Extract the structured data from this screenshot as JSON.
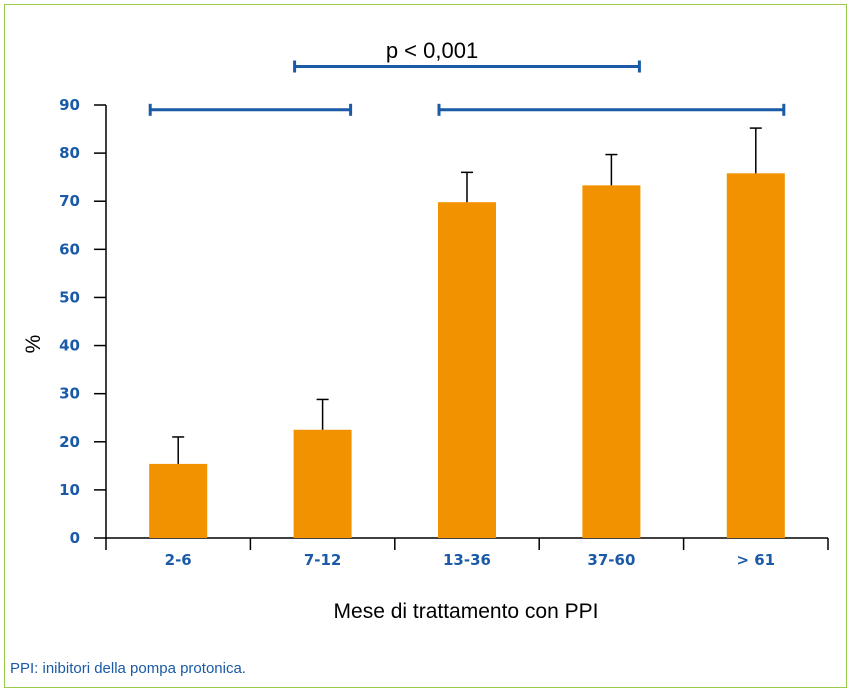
{
  "chart_data": {
    "type": "bar",
    "categories": [
      "2-6",
      "7-12",
      "13-36",
      "37-60",
      "> 61"
    ],
    "series": [
      {
        "values": [
          15.4,
          22.5,
          69.8,
          73.3,
          75.8
        ],
        "error_upper": [
          21.0,
          28.8,
          76.0,
          79.7,
          85.2
        ]
      }
    ],
    "xlabel": "Mese di trattamento con PPI",
    "ylabel": "%",
    "ylim": [
      0,
      90
    ],
    "yticks": [
      0,
      10,
      20,
      30,
      40,
      50,
      60,
      70,
      80,
      90
    ],
    "grid": false,
    "bar_color": "#f29200",
    "axis_label_color": "#1a5aa6",
    "bracket_color": "#1a5aa6",
    "significance": {
      "label": "p < 0,001",
      "brackets": [
        {
          "from": "2-6",
          "to": "7-12",
          "level": 89
        },
        {
          "from": "13-36",
          "to": "> 61",
          "level": 89
        },
        {
          "from": "7-12",
          "to": "37-60",
          "level": 98
        }
      ]
    }
  },
  "footnote": "PPI: inibitori della pompa protonica."
}
